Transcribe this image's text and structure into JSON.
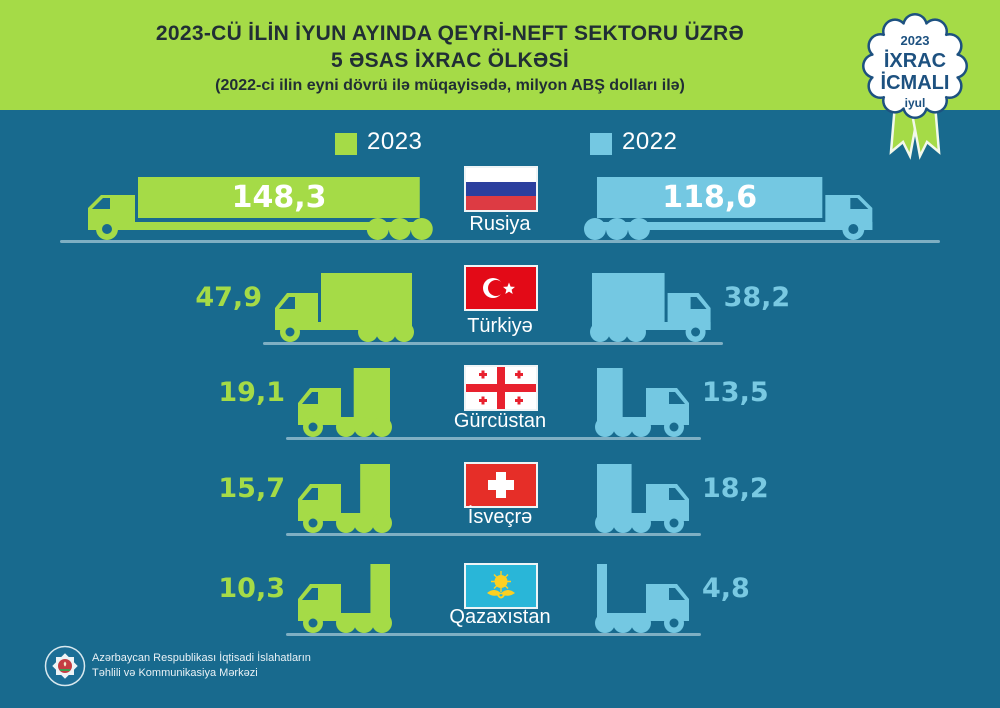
{
  "header": {
    "title_line1": "2023-CÜ İLİN İYUN AYINDA QEYRİ-NEFT SEKTORU ÜZRƏ",
    "title_line2": "5 ƏSAS İXRAC ÖLKƏSİ",
    "subtitle": "(2022-ci ilin eyni dövrü ilə müqayisədə, milyon ABŞ dolları ilə)"
  },
  "badge": {
    "year": "2023",
    "word1": "İXRAC",
    "word2": "İCMALI",
    "month": "iyul"
  },
  "legend": [
    {
      "label": "2023",
      "color": "#a5db47"
    },
    {
      "label": "2022",
      "color": "#74c8e2"
    }
  ],
  "rows": [
    {
      "country": "Rusiya",
      "flag": "russia",
      "v2023": 148.3,
      "v2022": 118.6,
      "label_2023": "148,3",
      "label_2022": "118,6"
    },
    {
      "country": "Türkiyə",
      "flag": "turkey",
      "v2023": 47.9,
      "v2022": 38.2,
      "label_2023": "47,9",
      "label_2022": "38,2"
    },
    {
      "country": "Gürcüstan",
      "flag": "georgia",
      "v2023": 19.1,
      "v2022": 13.5,
      "label_2023": "19,1",
      "label_2022": "13,5"
    },
    {
      "country": "İsveçrə",
      "flag": "switzerland",
      "v2023": 15.7,
      "v2022": 18.2,
      "label_2023": "15,7",
      "label_2022": "18,2"
    },
    {
      "country": "Qazaxıstan",
      "flag": "kazakhstan",
      "v2023": 10.3,
      "v2022": 4.8,
      "label_2023": "10,3",
      "label_2022": "4,8"
    }
  ],
  "footer": {
    "org_line1": "Azərbaycan Respublikası İqtisadi İslahatların",
    "org_line2": "Təhlili və Kommunikasiya Mərkəzi"
  },
  "colors": {
    "background": "#186a8e",
    "accent_2023": "#a5db47",
    "accent_2022": "#74c8e2",
    "title_text": "#212e35",
    "badge_navy": "#1d5180"
  },
  "chart_data": {
    "type": "bar",
    "title": "2023-cü ilin iyun ayında qeyri-neft sektoru üzrə 5 əsas ixrac ölkəsi",
    "subtitle": "(2022-ci ilin eyni dövrü ilə müqayisədə, milyon ABŞ dolları ilə)",
    "categories": [
      "Rusiya",
      "Türkiyə",
      "Gürcüstan",
      "İsveçrə",
      "Qazaxıstan"
    ],
    "series": [
      {
        "name": "2023",
        "values": [
          148.3,
          47.9,
          19.1,
          15.7,
          10.3
        ]
      },
      {
        "name": "2022",
        "values": [
          118.6,
          38.2,
          13.5,
          18.2,
          4.8
        ]
      }
    ],
    "unit": "milyon ABŞ dolları",
    "legend_position": "top",
    "orientation": "horizontal-pictograph"
  }
}
